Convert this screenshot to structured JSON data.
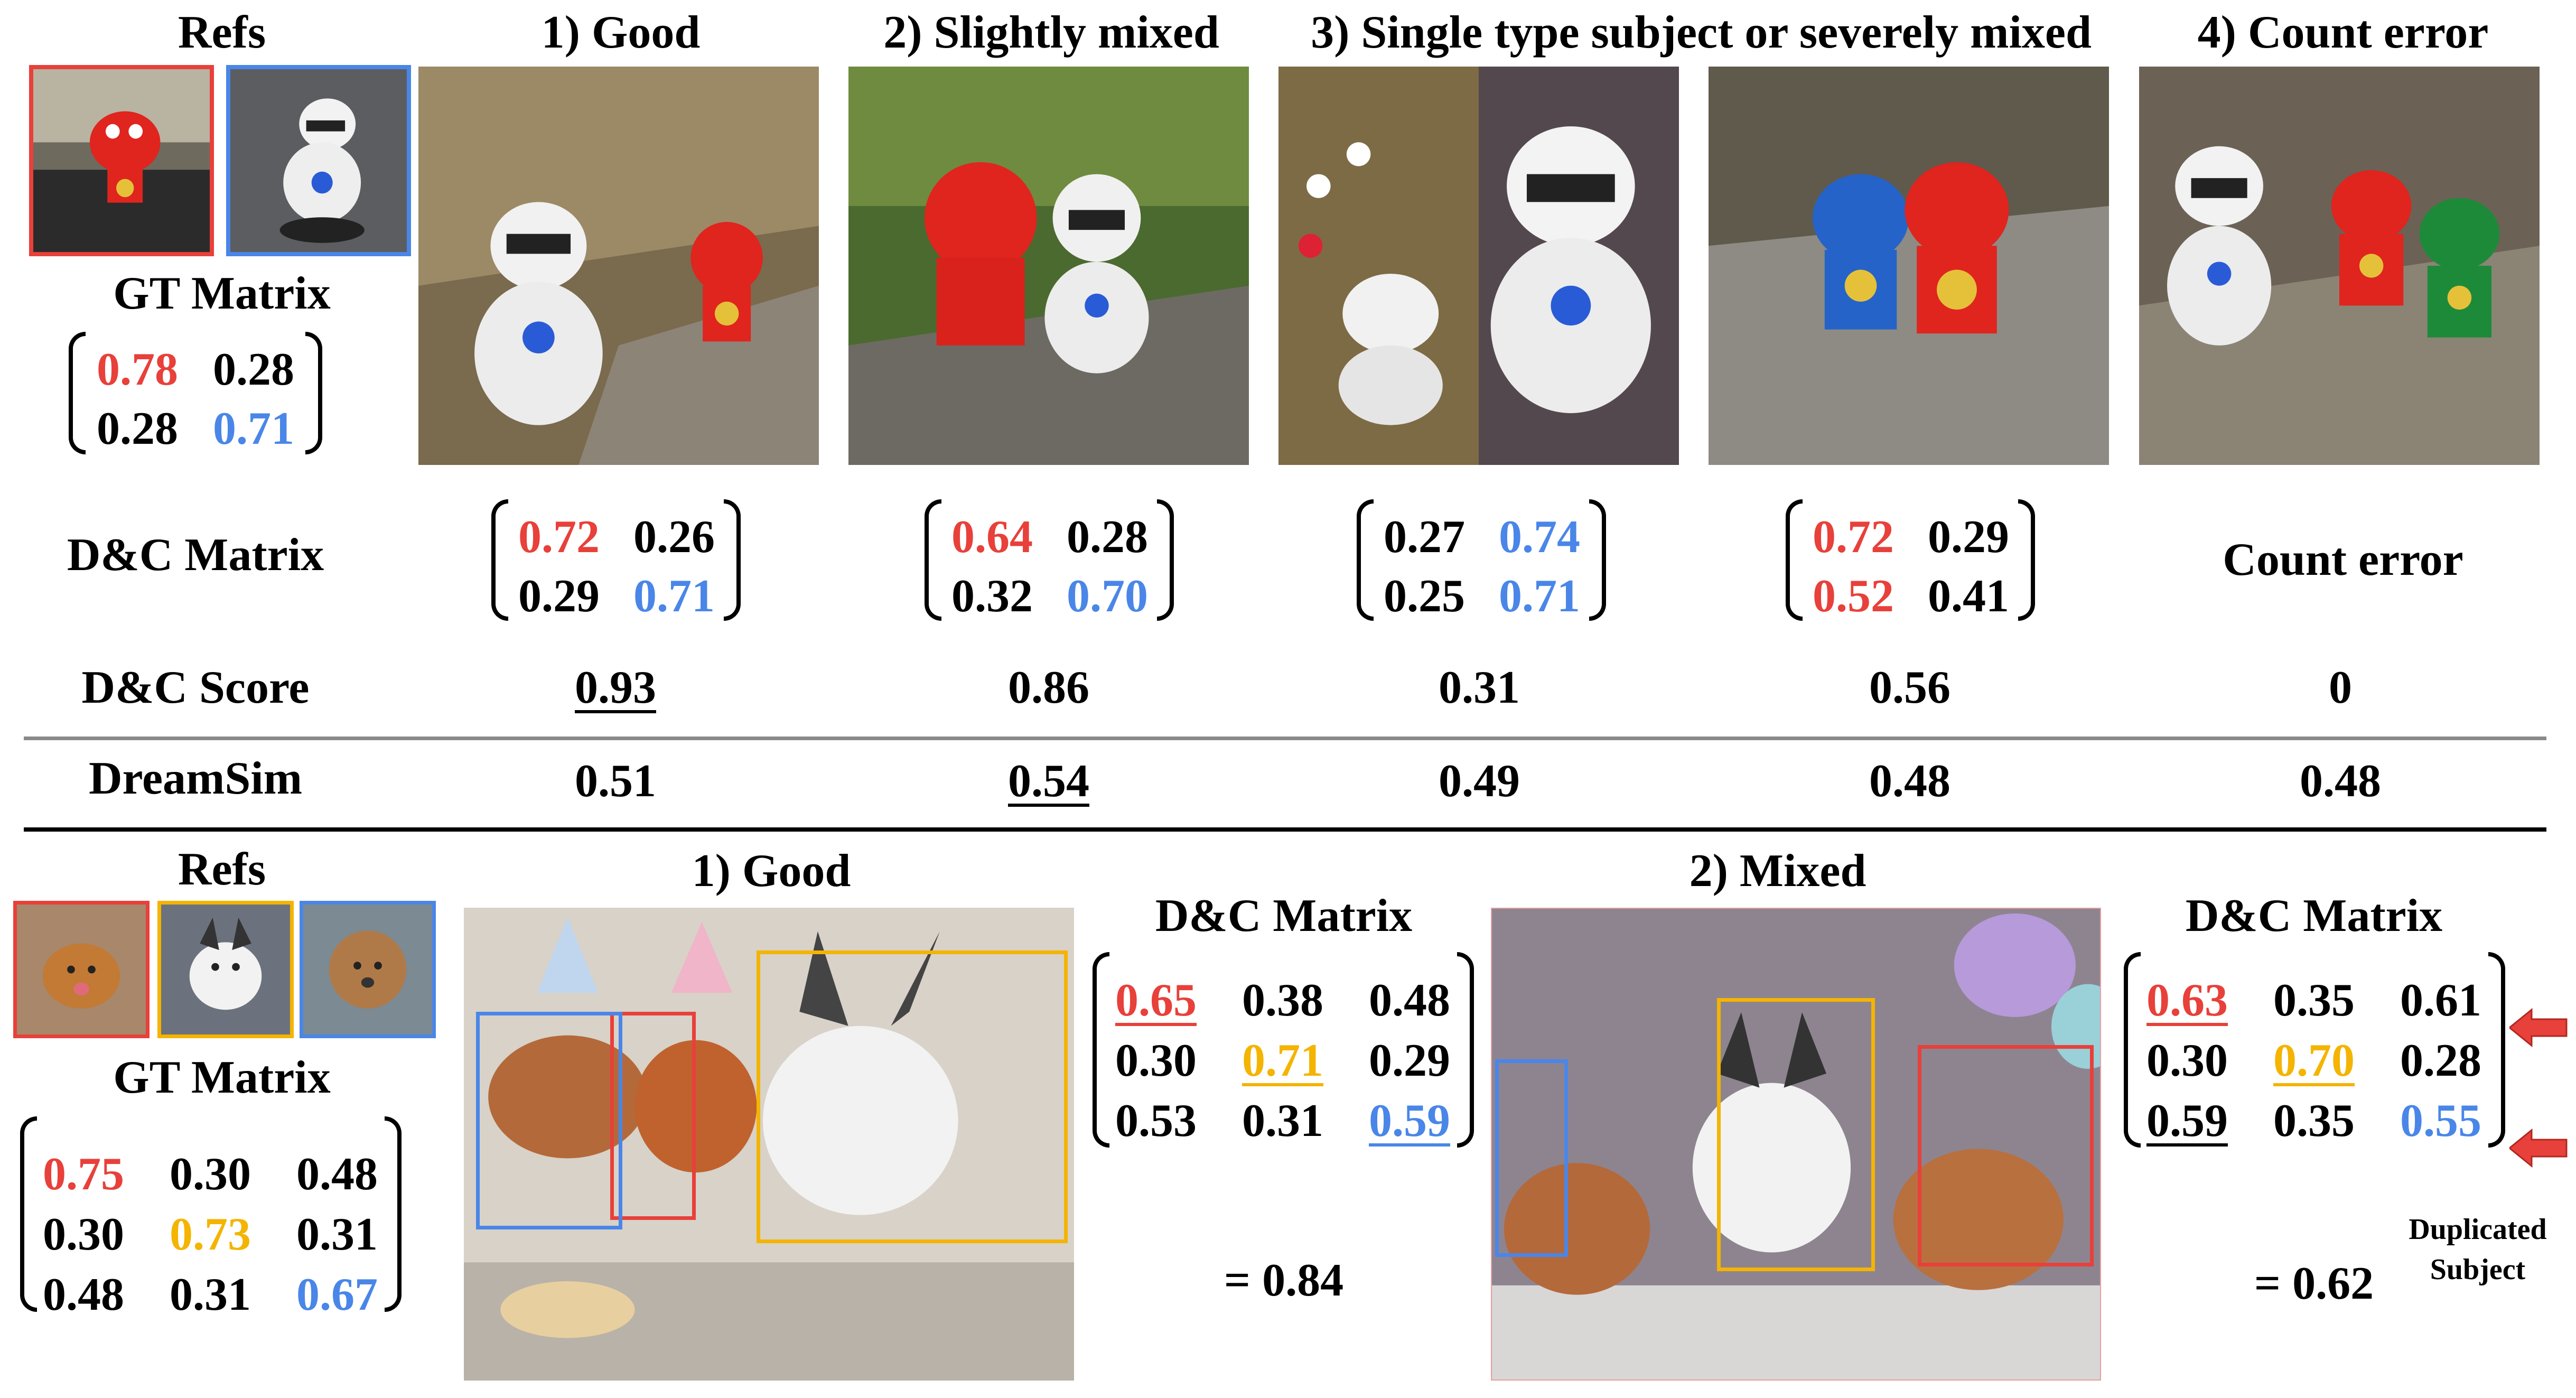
{
  "top": {
    "refs_label": "Refs",
    "gt_label": "GT Matrix",
    "gt_matrix": [
      [
        "0.78",
        "0.28"
      ],
      [
        "0.28",
        "0.71"
      ]
    ],
    "columns": [
      {
        "title": "1) Good"
      },
      {
        "title": "2) Slightly mixed"
      },
      {
        "title": "3) Single type subject or severely mixed"
      },
      {
        "title": "4) Count error"
      }
    ],
    "dc_matrix_label": "D&C Matrix",
    "dc_matrices": [
      [
        [
          "0.72",
          "0.26"
        ],
        [
          "0.29",
          "0.71"
        ]
      ],
      [
        [
          "0.64",
          "0.28"
        ],
        [
          "0.32",
          "0.70"
        ]
      ],
      [
        [
          "0.27",
          "0.74"
        ],
        [
          "0.25",
          "0.71"
        ]
      ],
      [
        [
          "0.72",
          "0.29"
        ],
        [
          "0.52",
          "0.41"
        ]
      ]
    ],
    "count_error_text": "Count error",
    "dc_score_label": "D&C Score",
    "dc_scores": [
      "0.93",
      "0.86",
      "0.31",
      "0.56",
      "0"
    ],
    "dreamsim_label": "DreamSim",
    "dreamsim_scores": [
      "0.51",
      "0.54",
      "0.49",
      "0.48",
      "0.48"
    ]
  },
  "bottom": {
    "refs_label": "Refs",
    "gt_label": "GT Matrix",
    "gt_matrix": [
      [
        "0.75",
        "0.30",
        "0.48"
      ],
      [
        "0.30",
        "0.73",
        "0.31"
      ],
      [
        "0.48",
        "0.31",
        "0.67"
      ]
    ],
    "good_title": "1) Good",
    "mixed_title": "2) Mixed",
    "dc_matrix_label_1": "D&C Matrix",
    "dc_matrix_label_2": "D&C Matrix",
    "good_matrix": [
      [
        "0.65",
        "0.38",
        "0.48"
      ],
      [
        "0.30",
        "0.71",
        "0.29"
      ],
      [
        "0.53",
        "0.31",
        "0.59"
      ]
    ],
    "mixed_matrix": [
      [
        "0.63",
        "0.35",
        "0.61"
      ],
      [
        "0.30",
        "0.70",
        "0.28"
      ],
      [
        "0.59",
        "0.35",
        "0.55"
      ]
    ],
    "good_score": "= 0.84",
    "mixed_score": "= 0.62",
    "duplicated_line1": "Duplicated",
    "duplicated_line2": "Subject"
  },
  "colors": {
    "red": "#e8403a",
    "blue": "#4a86e8",
    "yellow": "#f4b400"
  }
}
